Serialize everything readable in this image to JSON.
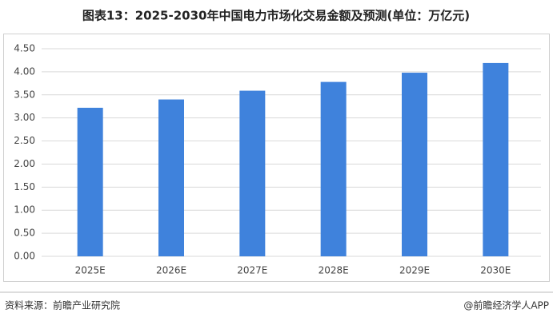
{
  "chart_data": {
    "type": "bar",
    "title": "图表13：2025-2030年中国电力市场化交易金额及预测(单位：万亿元)",
    "categories": [
      "2025E",
      "2026E",
      "2027E",
      "2028E",
      "2029E",
      "2030E"
    ],
    "values": [
      3.22,
      3.4,
      3.59,
      3.78,
      3.98,
      4.19
    ],
    "color": "#3f82dc",
    "ylim": [
      0,
      4.5
    ],
    "yticks": [
      {
        "value": 0,
        "label": "0.00"
      },
      {
        "value": 0.5,
        "label": "0.50"
      },
      {
        "value": 1,
        "label": "1.00"
      },
      {
        "value": 1.5,
        "label": "1.50"
      },
      {
        "value": 2,
        "label": "2.00"
      },
      {
        "value": 2.5,
        "label": "2.50"
      },
      {
        "value": 3,
        "label": "3.00"
      },
      {
        "value": 3.5,
        "label": "3.50"
      },
      {
        "value": 4,
        "label": "4.00"
      },
      {
        "value": 4.5,
        "label": "4.50"
      }
    ],
    "grid": true
  },
  "footer": {
    "source": "资料来源：前瞻产业研究院",
    "credit": "@前瞻经济学人APP"
  }
}
